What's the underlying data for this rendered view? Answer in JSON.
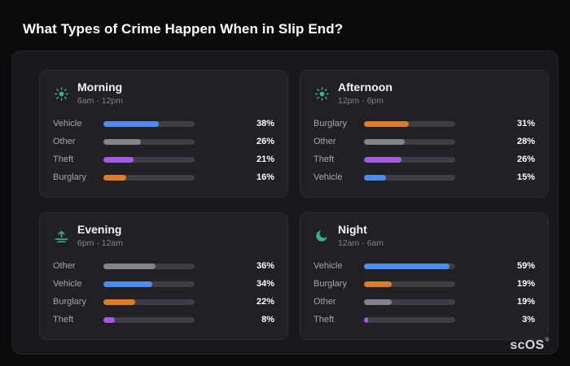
{
  "page_title": "What Types of Crime Happen When in Slip End?",
  "brand": {
    "text": "scOS",
    "registered": "®"
  },
  "colors": {
    "accent_teal": "#35b597",
    "bar_vehicle": "#4d8df0",
    "bar_other": "#83838c",
    "bar_theft": "#a659e8",
    "bar_burglary": "#dd7e27",
    "track": "#3e3e46"
  },
  "chart_data": [
    {
      "type": "bar",
      "orientation": "horizontal",
      "title": "Morning",
      "subtitle": "6am - 12pm",
      "icon": "sun-icon",
      "categories": [
        "Vehicle",
        "Other",
        "Theft",
        "Burglary"
      ],
      "values": [
        38,
        26,
        21,
        16
      ],
      "value_labels": [
        "38%",
        "26%",
        "21%",
        "16%"
      ],
      "bar_colors": [
        "bar_vehicle",
        "bar_other",
        "bar_theft",
        "bar_burglary"
      ],
      "xlim": [
        0,
        63
      ]
    },
    {
      "type": "bar",
      "orientation": "horizontal",
      "title": "Afternoon",
      "subtitle": "12pm - 6pm",
      "icon": "sun-icon",
      "categories": [
        "Burglary",
        "Other",
        "Theft",
        "Vehicle"
      ],
      "values": [
        31,
        28,
        26,
        15
      ],
      "value_labels": [
        "31%",
        "28%",
        "26%",
        "15%"
      ],
      "bar_colors": [
        "bar_burglary",
        "bar_other",
        "bar_theft",
        "bar_vehicle"
      ],
      "xlim": [
        0,
        63
      ]
    },
    {
      "type": "bar",
      "orientation": "horizontal",
      "title": "Evening",
      "subtitle": "6pm - 12am",
      "icon": "sunset-icon",
      "categories": [
        "Other",
        "Vehicle",
        "Burglary",
        "Theft"
      ],
      "values": [
        36,
        34,
        22,
        8
      ],
      "value_labels": [
        "36%",
        "34%",
        "22%",
        "8%"
      ],
      "bar_colors": [
        "bar_other",
        "bar_vehicle",
        "bar_burglary",
        "bar_theft"
      ],
      "xlim": [
        0,
        63
      ]
    },
    {
      "type": "bar",
      "orientation": "horizontal",
      "title": "Night",
      "subtitle": "12am - 6am",
      "icon": "moon-icon",
      "categories": [
        "Vehicle",
        "Burglary",
        "Other",
        "Theft"
      ],
      "values": [
        59,
        19,
        19,
        3
      ],
      "value_labels": [
        "59%",
        "19%",
        "19%",
        "3%"
      ],
      "bar_colors": [
        "bar_vehicle",
        "bar_burglary",
        "bar_other",
        "bar_theft"
      ],
      "xlim": [
        0,
        63
      ]
    }
  ]
}
